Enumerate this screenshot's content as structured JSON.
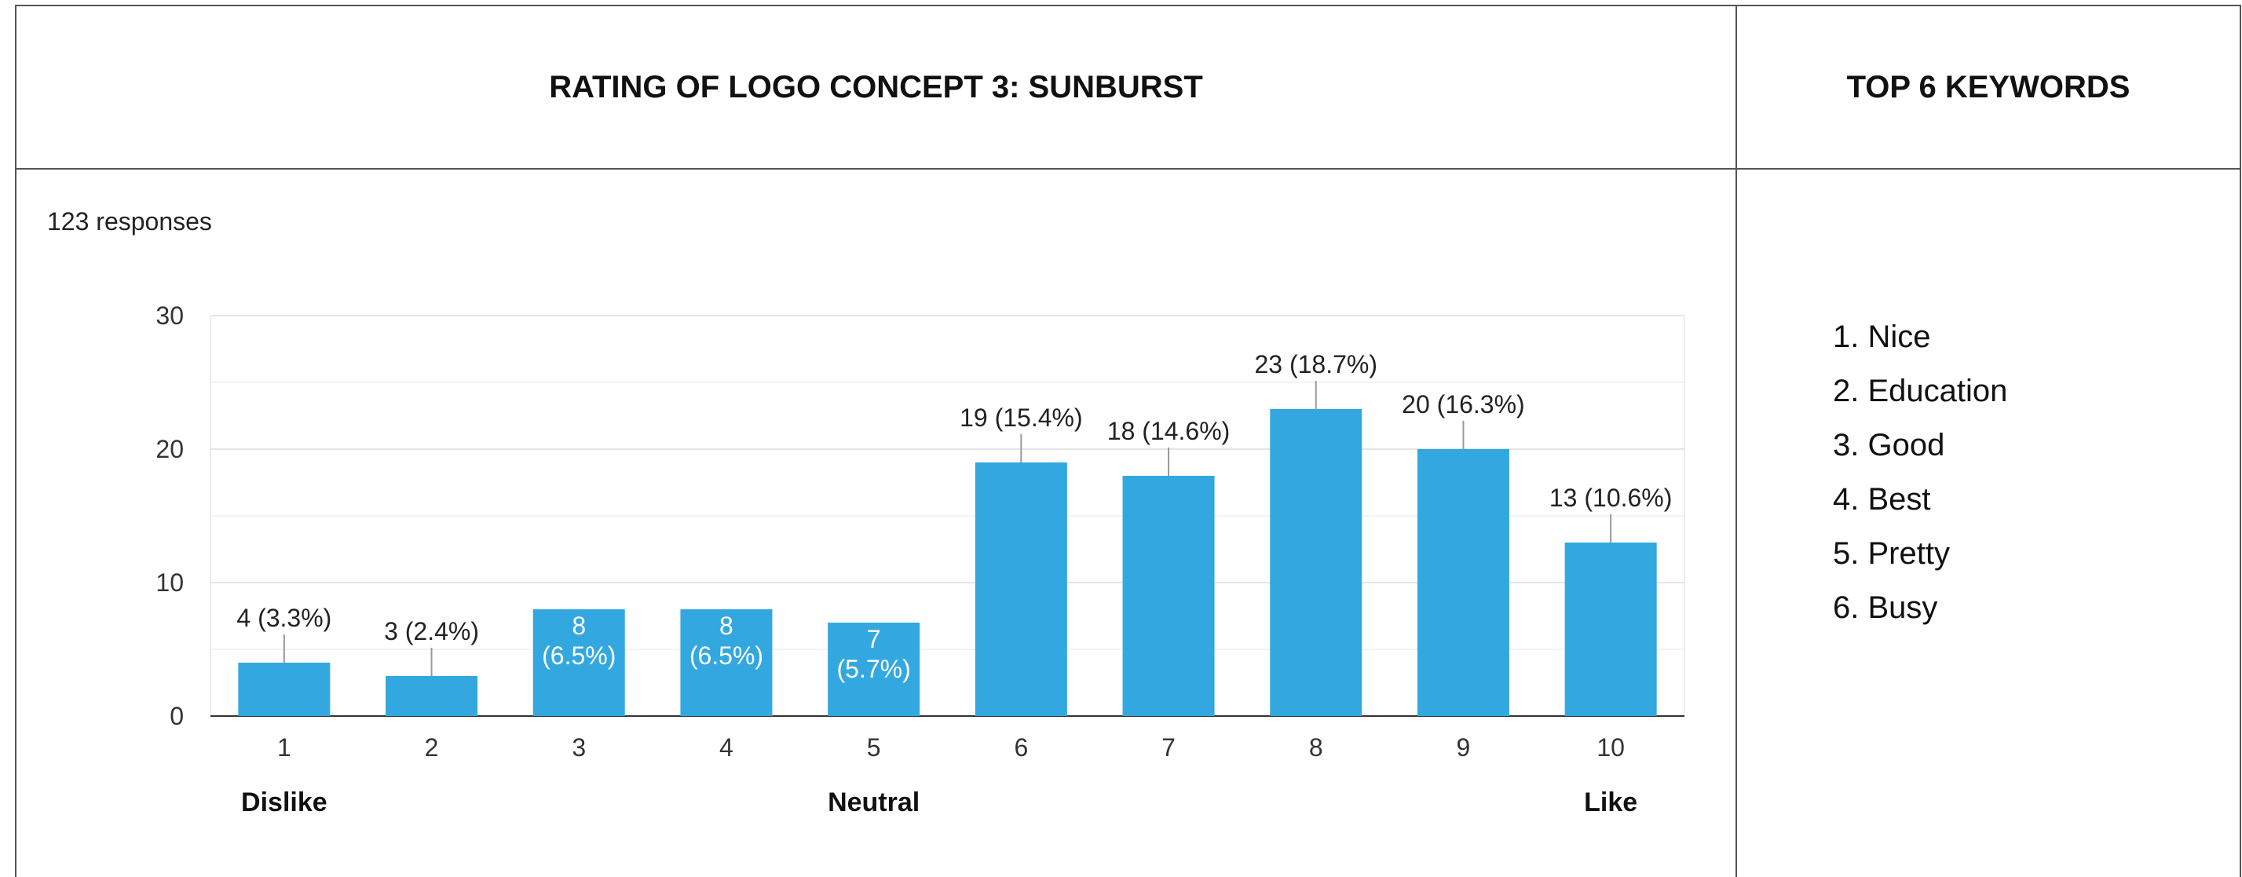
{
  "header": {
    "left": "RATING OF LOGO CONCEPT 3: SUNBURST",
    "right": "TOP 6 KEYWORDS"
  },
  "keywords": [
    "1. Nice",
    "2. Education",
    "3. Good",
    "4. Best",
    "5. Pretty",
    "6. Busy"
  ],
  "chart_data": {
    "type": "bar",
    "subtitle": "123 responses",
    "categories": [
      "1",
      "2",
      "3",
      "4",
      "5",
      "6",
      "7",
      "8",
      "9",
      "10"
    ],
    "values": [
      4,
      3,
      8,
      8,
      7,
      19,
      18,
      23,
      20,
      13
    ],
    "value_labels": [
      "4 (3.3%)",
      "3 (2.4%)",
      "8 (6.5%)",
      "8 (6.5%)",
      "7 (5.7%)",
      "19 (15.4%)",
      "18 (14.6%)",
      "23 (18.7%)",
      "20 (16.3%)",
      "13 (10.6%)"
    ],
    "color": "#33a8e0",
    "ylim": [
      0,
      30
    ],
    "yticks": [
      0,
      10,
      20,
      30
    ],
    "minor_yticks": [
      5,
      15,
      25
    ],
    "grid": true,
    "scale_labels": [
      {
        "category": "1",
        "label": "Dislike"
      },
      {
        "category": "5",
        "label": "Neutral"
      },
      {
        "category": "10",
        "label": "Like"
      }
    ]
  }
}
